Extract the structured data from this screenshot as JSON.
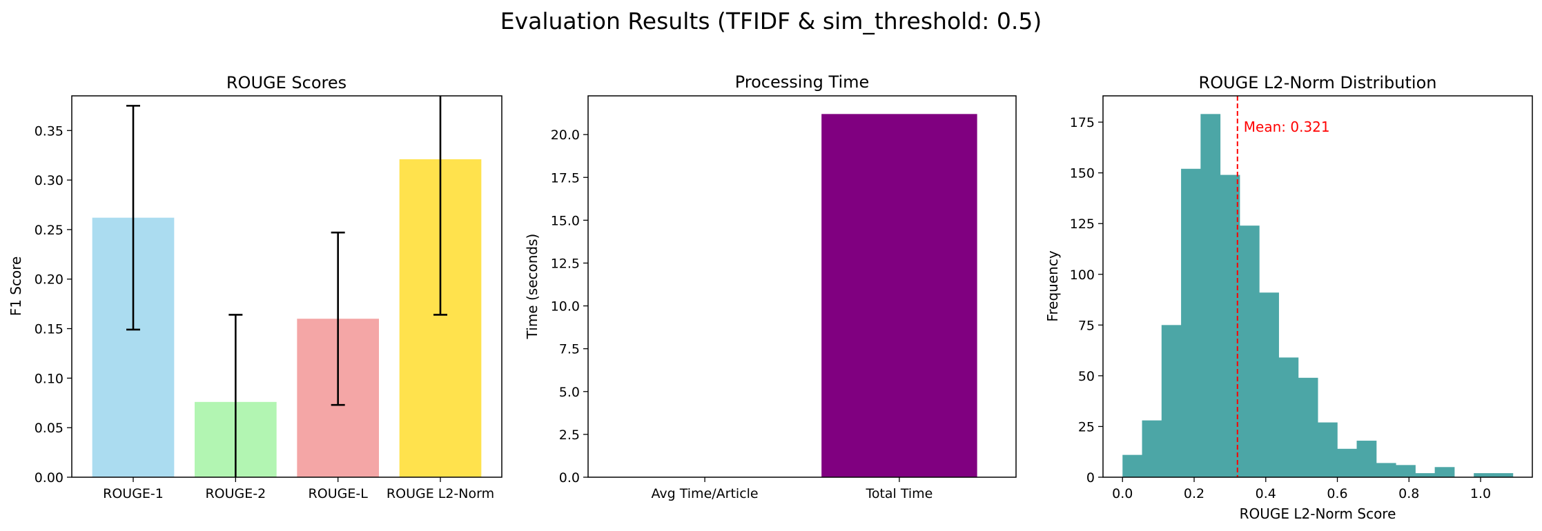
{
  "figure": {
    "suptitle": "Evaluation Results (TFIDF & sim_threshold: 0.5)"
  },
  "chart_data": [
    {
      "type": "bar",
      "title": "ROUGE Scores",
      "xlabel": "",
      "ylabel": "F1 Score",
      "categories": [
        "ROUGE-1",
        "ROUGE-2",
        "ROUGE-L",
        "ROUGE L2-Norm"
      ],
      "values": [
        0.262,
        0.076,
        0.16,
        0.321
      ],
      "error": [
        0.113,
        0.088,
        0.087,
        0.157
      ],
      "colors": [
        "#abdcf0",
        "#b2f5b2",
        "#f4a6a6",
        "#ffe24d"
      ],
      "error_color": "#000000",
      "ylim": [
        0,
        0.385
      ],
      "yticks": [
        0.0,
        0.05,
        0.1,
        0.15,
        0.2,
        0.25,
        0.3,
        0.35
      ],
      "ytick_labels": [
        "0.00",
        "0.05",
        "0.10",
        "0.15",
        "0.20",
        "0.25",
        "0.30",
        "0.35"
      ],
      "grid": false
    },
    {
      "type": "bar",
      "title": "Processing Time",
      "xlabel": "",
      "ylabel": "Time (seconds)",
      "categories": [
        "Avg Time/Article",
        "Total Time"
      ],
      "values": [
        0.02,
        21.2
      ],
      "colors": [
        "#800080",
        "#800080"
      ],
      "ylim": [
        0,
        22.26
      ],
      "yticks": [
        0,
        2.5,
        5,
        7.5,
        10,
        12.5,
        15,
        17.5,
        20
      ],
      "ytick_labels": [
        "0.0",
        "2.5",
        "5.0",
        "7.5",
        "10.0",
        "12.5",
        "15.0",
        "17.5",
        "20.0"
      ],
      "grid": false
    },
    {
      "type": "histogram",
      "title": "ROUGE L2-Norm Distribution",
      "xlabel": "ROUGE L2-Norm Score",
      "ylabel": "Frequency",
      "bin_start": 0.0,
      "bin_width": 0.0545,
      "counts": [
        11,
        28,
        75,
        152,
        179,
        149,
        124,
        91,
        59,
        49,
        27,
        14,
        18,
        7,
        6,
        2,
        5,
        0,
        2,
        2
      ],
      "color": "#4ca6a6",
      "mean": 0.321,
      "mean_label": "Mean: 0.321",
      "mean_color": "#ff0000",
      "xlim": [
        -0.0545,
        1.1445
      ],
      "ylim": [
        0,
        187.95
      ],
      "xticks": [
        0.0,
        0.2,
        0.4,
        0.6,
        0.8,
        1.0
      ],
      "xtick_labels": [
        "0.0",
        "0.2",
        "0.4",
        "0.6",
        "0.8",
        "1.0"
      ],
      "yticks": [
        0,
        25,
        50,
        75,
        100,
        125,
        150,
        175
      ],
      "ytick_labels": [
        "0",
        "25",
        "50",
        "75",
        "100",
        "125",
        "150",
        "175"
      ],
      "grid": false
    }
  ]
}
